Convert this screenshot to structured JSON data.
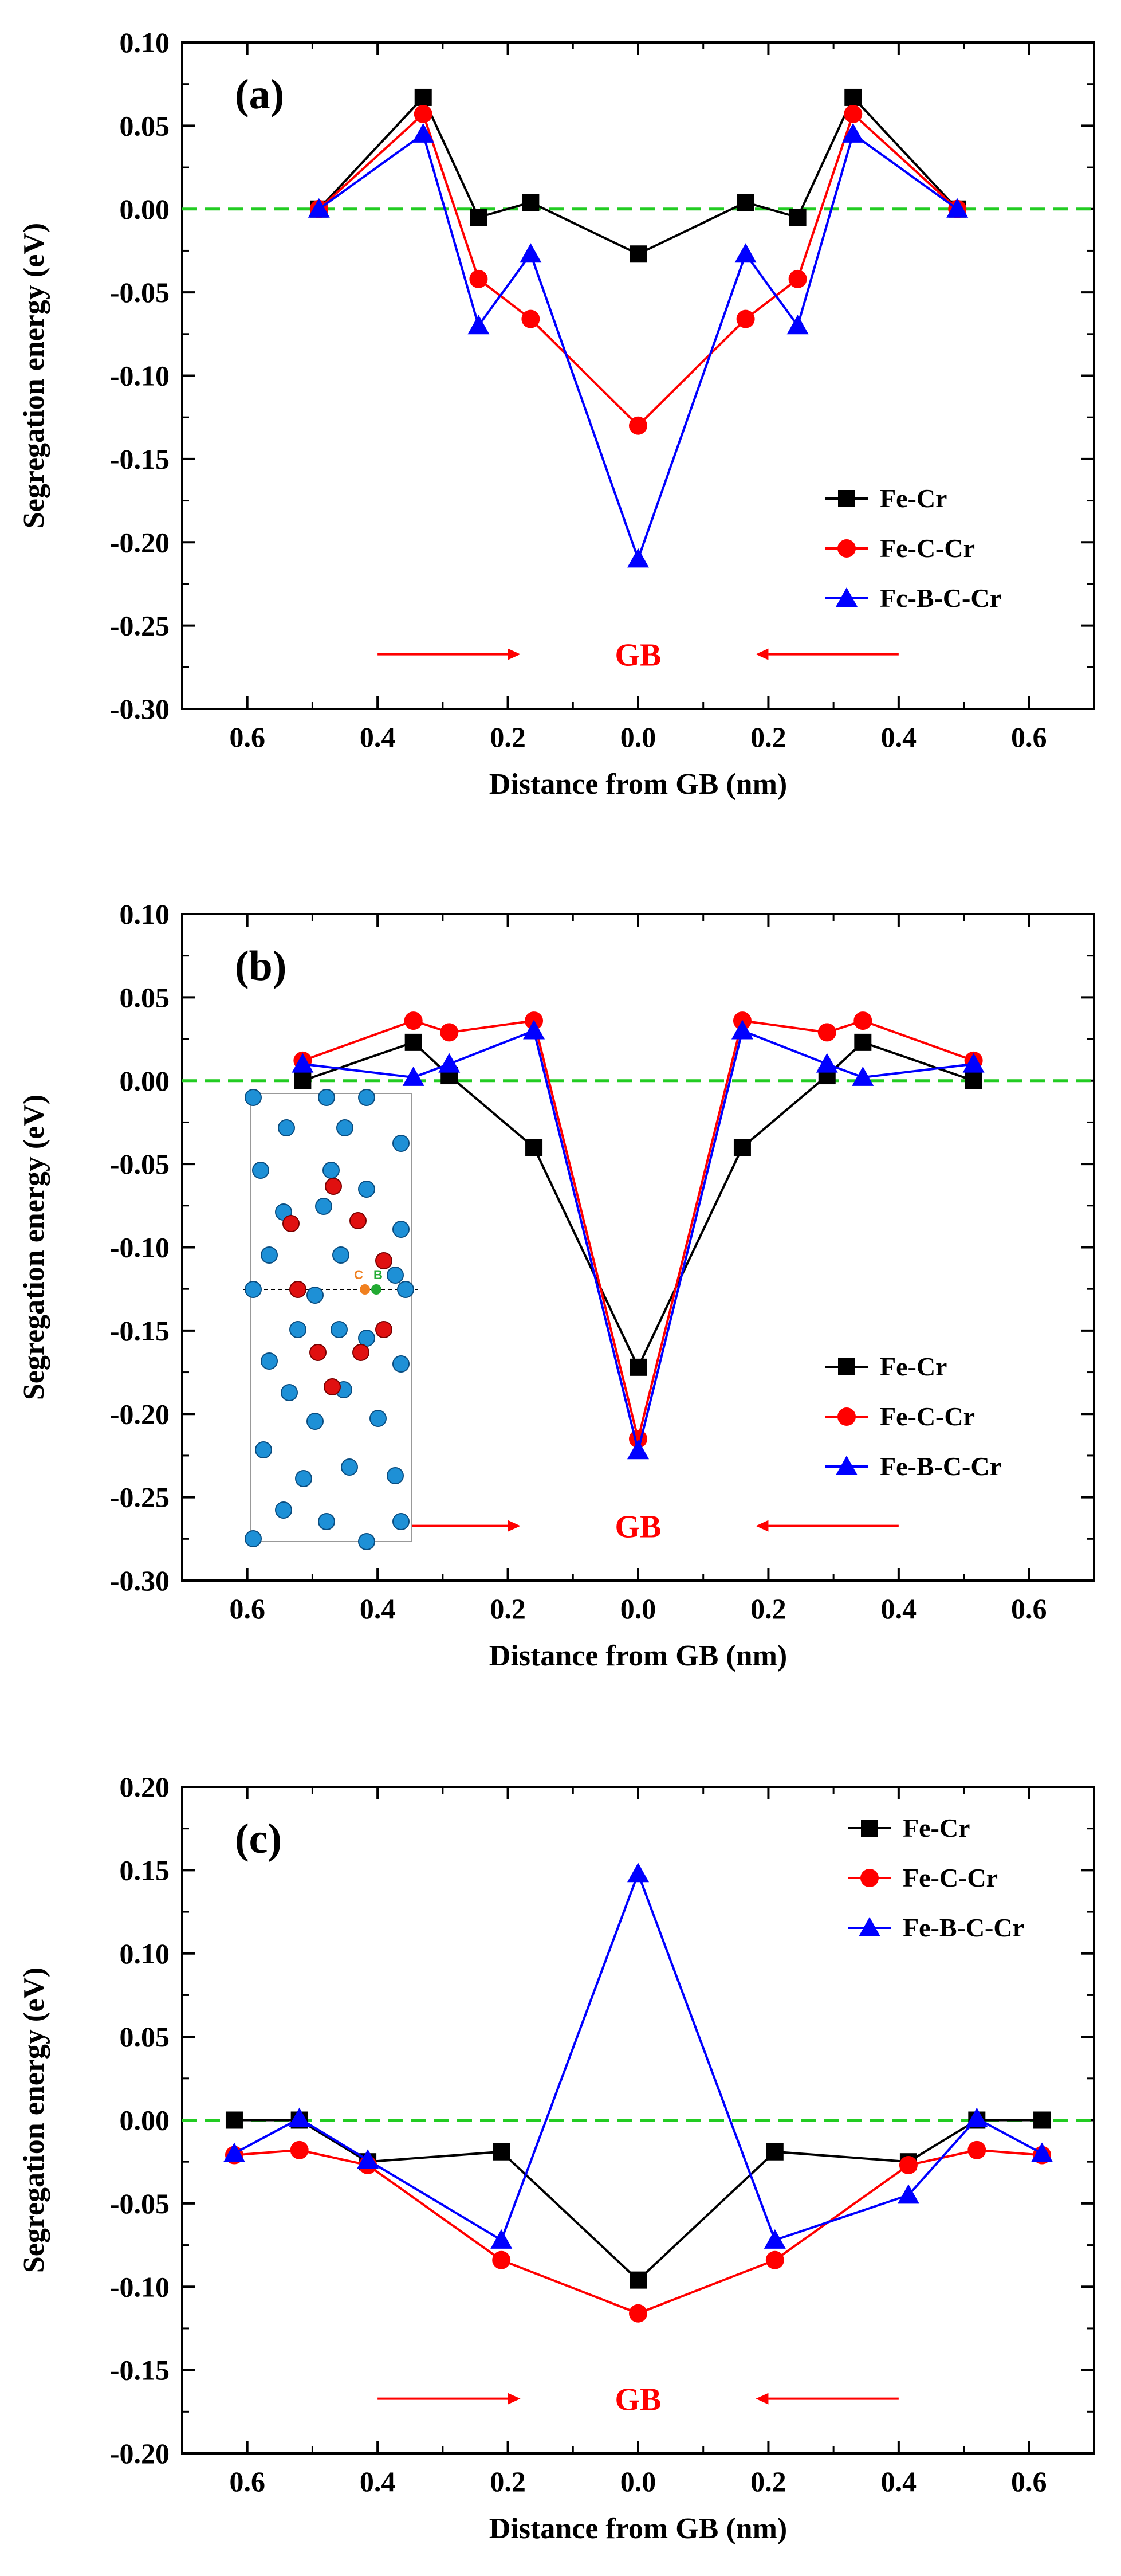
{
  "colors": {
    "fe_cr": "#000000",
    "fe_c_cr": "#ff0000",
    "fe_b_c_cr": "#0000ff",
    "reference_line": "#22cc22",
    "gb_arrow": "#ff0000",
    "fe_atom": "#1e90d6",
    "c_atom": "#e01010",
    "b_atom": "#22aa33",
    "c_gb_atom": "#f08020"
  },
  "chart_data": [
    {
      "panel": "(a)",
      "type": "line",
      "xlabel": "Distance from GB (nm)",
      "ylabel": "Segregation energy (eV)",
      "xlim": [
        -0.7,
        0.7
      ],
      "ylim": [
        -0.3,
        0.1
      ],
      "x_ticks": [
        -0.6,
        -0.4,
        -0.2,
        0.0,
        0.2,
        0.4,
        0.6
      ],
      "x_tick_labels": [
        "0.6",
        "0.4",
        "0.2",
        "0.0",
        "0.2",
        "0.4",
        "0.6"
      ],
      "y_ticks": [
        0.1,
        0.05,
        0.0,
        -0.05,
        -0.1,
        -0.15,
        -0.2,
        -0.25,
        -0.3
      ],
      "y_tick_labels": [
        "0.10",
        "0.05",
        "0.00",
        "-0.05",
        "-0.10",
        "-0.15",
        "-0.20",
        "-0.25",
        "-0.30"
      ],
      "reference_y": 0.0,
      "legend_position": "right",
      "gb_label": "GB",
      "series": [
        {
          "name": "Fe-Cr",
          "marker": "square",
          "x": [
            -0.49,
            -0.33,
            -0.245,
            -0.165,
            0.0,
            0.165,
            0.245,
            0.33,
            0.49
          ],
          "y": [
            0.0,
            0.067,
            -0.005,
            0.004,
            -0.027,
            0.004,
            -0.005,
            0.067,
            0.0
          ]
        },
        {
          "name": "Fe-C-Cr",
          "marker": "circle",
          "x": [
            -0.49,
            -0.33,
            -0.245,
            -0.165,
            0.0,
            0.165,
            0.245,
            0.33,
            0.49
          ],
          "y": [
            0.0,
            0.057,
            -0.042,
            -0.066,
            -0.13,
            -0.066,
            -0.042,
            0.057,
            0.0
          ]
        },
        {
          "name": "Fc-B-C-Cr",
          "marker": "triangle",
          "x": [
            -0.49,
            -0.33,
            -0.245,
            -0.165,
            0.0,
            0.165,
            0.245,
            0.33,
            0.49
          ],
          "y": [
            0.0,
            0.045,
            -0.07,
            -0.027,
            -0.21,
            -0.027,
            -0.07,
            0.045,
            0.0
          ]
        }
      ]
    },
    {
      "panel": "(b)",
      "type": "line",
      "xlabel": "Distance from GB (nm)",
      "ylabel": "Segregation energy (eV)",
      "xlim": [
        -0.7,
        0.7
      ],
      "ylim": [
        -0.3,
        0.1
      ],
      "x_ticks": [
        -0.6,
        -0.4,
        -0.2,
        0.0,
        0.2,
        0.4,
        0.6
      ],
      "x_tick_labels": [
        "0.6",
        "0.4",
        "0.2",
        "0.0",
        "0.2",
        "0.4",
        "0.6"
      ],
      "y_ticks": [
        0.1,
        0.05,
        0.0,
        -0.05,
        -0.1,
        -0.15,
        -0.2,
        -0.25,
        -0.3
      ],
      "y_tick_labels": [
        "0.10",
        "0.05",
        "0.00",
        "-0.05",
        "-0.10",
        "-0.15",
        "-0.20",
        "-0.25",
        "-0.30"
      ],
      "reference_y": 0.0,
      "legend_position": "right",
      "gb_label": "GB",
      "inset_labels": [
        "C",
        "B"
      ],
      "series": [
        {
          "name": "Fe-Cr",
          "marker": "square",
          "x": [
            -0.515,
            -0.345,
            -0.29,
            -0.16,
            0.0,
            0.16,
            0.29,
            0.345,
            0.515
          ],
          "y": [
            0.0,
            0.023,
            0.003,
            -0.04,
            -0.172,
            -0.04,
            0.003,
            0.023,
            0.0
          ]
        },
        {
          "name": "Fe-C-Cr",
          "marker": "circle",
          "x": [
            -0.515,
            -0.345,
            -0.29,
            -0.16,
            0.0,
            0.16,
            0.29,
            0.345,
            0.515
          ],
          "y": [
            0.012,
            0.036,
            0.029,
            0.036,
            -0.215,
            0.036,
            0.029,
            0.036,
            0.012
          ]
        },
        {
          "name": "Fe-B-C-Cr",
          "marker": "triangle",
          "x": [
            -0.515,
            -0.345,
            -0.29,
            -0.16,
            0.0,
            0.16,
            0.29,
            0.345,
            0.515
          ],
          "y": [
            0.01,
            0.002,
            0.01,
            0.03,
            -0.222,
            0.03,
            0.01,
            0.002,
            0.01
          ]
        }
      ]
    },
    {
      "panel": "(c)",
      "type": "line",
      "xlabel": "Distance from GB (nm)",
      "ylabel": "Segregation energy (eV)",
      "xlim": [
        -0.7,
        0.7
      ],
      "ylim": [
        -0.2,
        0.2
      ],
      "x_ticks": [
        -0.6,
        -0.4,
        -0.2,
        0.0,
        0.2,
        0.4,
        0.6
      ],
      "x_tick_labels": [
        "0.6",
        "0.4",
        "0.2",
        "0.0",
        "0.2",
        "0.4",
        "0.6"
      ],
      "y_ticks": [
        0.2,
        0.15,
        0.1,
        0.05,
        0.0,
        -0.05,
        -0.1,
        -0.15,
        -0.2
      ],
      "y_tick_labels": [
        "0.20",
        "0.15",
        "0.10",
        "0.05",
        "0.00",
        "-0.05",
        "-0.10",
        "-0.15",
        "-0.20"
      ],
      "reference_y": 0.0,
      "legend_position": "top-right",
      "gb_label": "GB",
      "series": [
        {
          "name": "Fe-Cr",
          "marker": "square",
          "x": [
            -0.62,
            -0.52,
            -0.415,
            -0.21,
            0.0,
            0.21,
            0.415,
            0.52,
            0.62
          ],
          "y": [
            0.0,
            0.0,
            -0.025,
            -0.019,
            -0.096,
            -0.019,
            -0.025,
            0.0,
            0.0
          ]
        },
        {
          "name": "Fe-C-Cr",
          "marker": "circle",
          "x": [
            -0.62,
            -0.52,
            -0.415,
            -0.21,
            0.0,
            0.21,
            0.415,
            0.52,
            0.62
          ],
          "y": [
            -0.021,
            -0.018,
            -0.027,
            -0.084,
            -0.116,
            -0.084,
            -0.027,
            -0.018,
            -0.021
          ]
        },
        {
          "name": "Fe-B-C-Cr",
          "marker": "triangle",
          "x": [
            -0.62,
            -0.52,
            -0.415,
            -0.21,
            0.0,
            0.21,
            0.415,
            0.52,
            0.62
          ],
          "y": [
            -0.02,
            0.001,
            -0.024,
            -0.072,
            0.148,
            -0.072,
            -0.045,
            0.001,
            -0.02
          ]
        }
      ]
    }
  ]
}
